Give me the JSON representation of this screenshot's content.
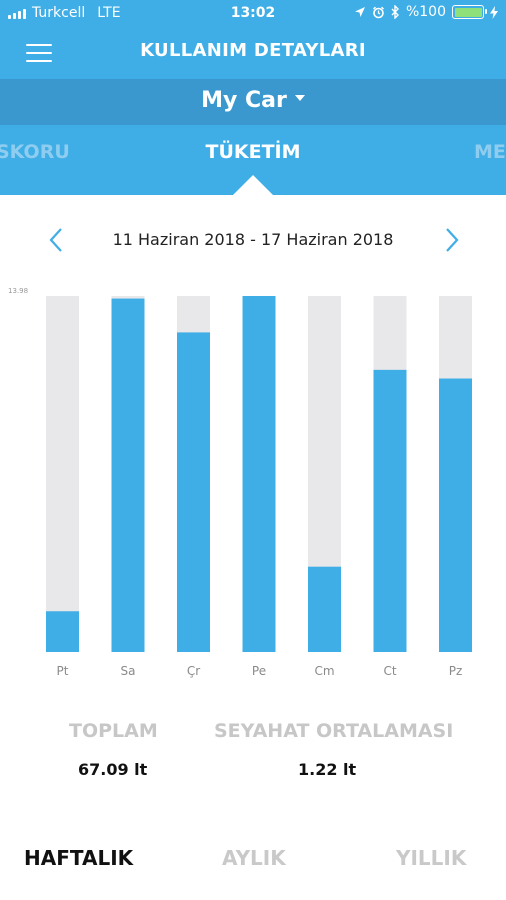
{
  "status_bar": {
    "carrier": "Turkcell",
    "network": "LTE",
    "time": "13:02",
    "battery": "%100",
    "battery_color": "#8ee07a"
  },
  "header": {
    "title": "KULLANIM DETAYLARI",
    "menu_icon": "hamburger-icon"
  },
  "car_selector": {
    "selected": "My Car"
  },
  "tabs": {
    "left": "SKORU",
    "active": "TÜKETİM",
    "right": "ME"
  },
  "date_range": {
    "label": "11 Haziran 2018 - 17 Haziran 2018",
    "prev_icon": "chevron-left-icon",
    "next_icon": "chevron-right-icon"
  },
  "chart_data": {
    "type": "bar",
    "max_label": "13.98",
    "ylim": [
      0,
      13.98
    ],
    "categories": [
      "Pt",
      "Sa",
      "Çr",
      "Pe",
      "Cm",
      "Ct",
      "Pz"
    ],
    "values": [
      1.6,
      13.88,
      12.55,
      13.98,
      3.35,
      11.08,
      10.74
    ],
    "bar_color": "#3faee6",
    "track_color": "#e8e8ea"
  },
  "summary": {
    "total_label": "TOPLAM",
    "total_value": "67.09 lt",
    "trip_avg_label": "SEYAHAT ORTALAMASI",
    "trip_avg_value": "1.22 lt"
  },
  "periods": {
    "weekly": "HAFTALIK",
    "monthly": "AYLIK",
    "yearly": "YILLIK"
  },
  "colors": {
    "primary": "#3faee6",
    "primary_dark": "#3a98cf"
  }
}
